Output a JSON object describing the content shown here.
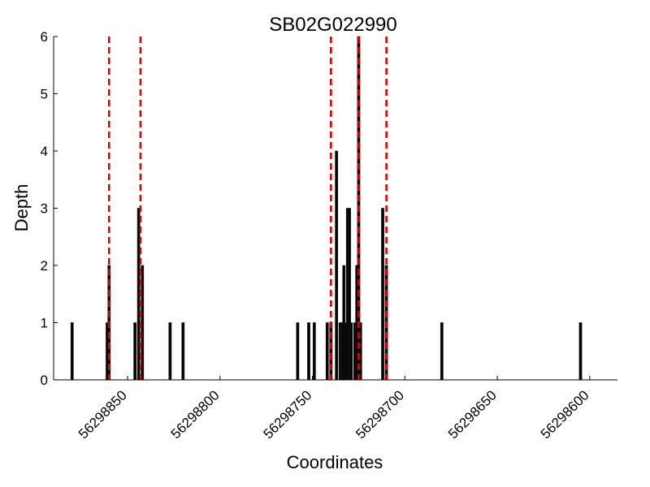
{
  "chart_data": {
    "type": "bar",
    "title": "SB02G022990",
    "xlabel": "Coordinates",
    "ylabel": "Depth",
    "x_reversed": true,
    "xlim": [
      56298890,
      56298585
    ],
    "ylim": [
      0,
      6
    ],
    "x_ticks": [
      56298850,
      56298800,
      56298750,
      56298700,
      56298650,
      56298600
    ],
    "x_tick_labels": [
      "56298850",
      "56298800",
      "56298750",
      "56298700",
      "56298650",
      "56298600"
    ],
    "y_ticks": [
      0,
      1,
      2,
      3,
      4,
      5,
      6
    ],
    "y_tick_labels": [
      "0",
      "1",
      "2",
      "3",
      "4",
      "5",
      "6"
    ],
    "grid": false,
    "bar_color": "#000000",
    "bars": [
      {
        "x": 56298880,
        "value": 1
      },
      {
        "x": 56298861,
        "value": 1
      },
      {
        "x": 56298860,
        "value": 2
      },
      {
        "x": 56298846,
        "value": 1
      },
      {
        "x": 56298844,
        "value": 3
      },
      {
        "x": 56298842,
        "value": 2
      },
      {
        "x": 56298827,
        "value": 1
      },
      {
        "x": 56298820,
        "value": 1
      },
      {
        "x": 56298758,
        "value": 1
      },
      {
        "x": 56298752,
        "value": 1
      },
      {
        "x": 56298749,
        "value": 1
      },
      {
        "x": 56298742,
        "value": 1
      },
      {
        "x": 56298740,
        "value": 1
      },
      {
        "x": 56298737,
        "value": 4
      },
      {
        "x": 56298735,
        "value": 1
      },
      {
        "x": 56298734,
        "value": 1
      },
      {
        "x": 56298733,
        "value": 2
      },
      {
        "x": 56298732,
        "value": 1
      },
      {
        "x": 56298731,
        "value": 3
      },
      {
        "x": 56298730,
        "value": 3
      },
      {
        "x": 56298729,
        "value": 1
      },
      {
        "x": 56298727,
        "value": 1
      },
      {
        "x": 56298726,
        "value": 2
      },
      {
        "x": 56298725,
        "value": 6
      },
      {
        "x": 56298724,
        "value": 1
      },
      {
        "x": 56298712,
        "value": 3
      },
      {
        "x": 56298710,
        "value": 2
      },
      {
        "x": 56298680,
        "value": 1
      },
      {
        "x": 56298605,
        "value": 1
      }
    ],
    "reference_lines": {
      "color": "#e00000",
      "style": "dashed",
      "x": [
        56298860,
        56298843,
        56298740,
        56298725,
        56298710
      ]
    }
  }
}
